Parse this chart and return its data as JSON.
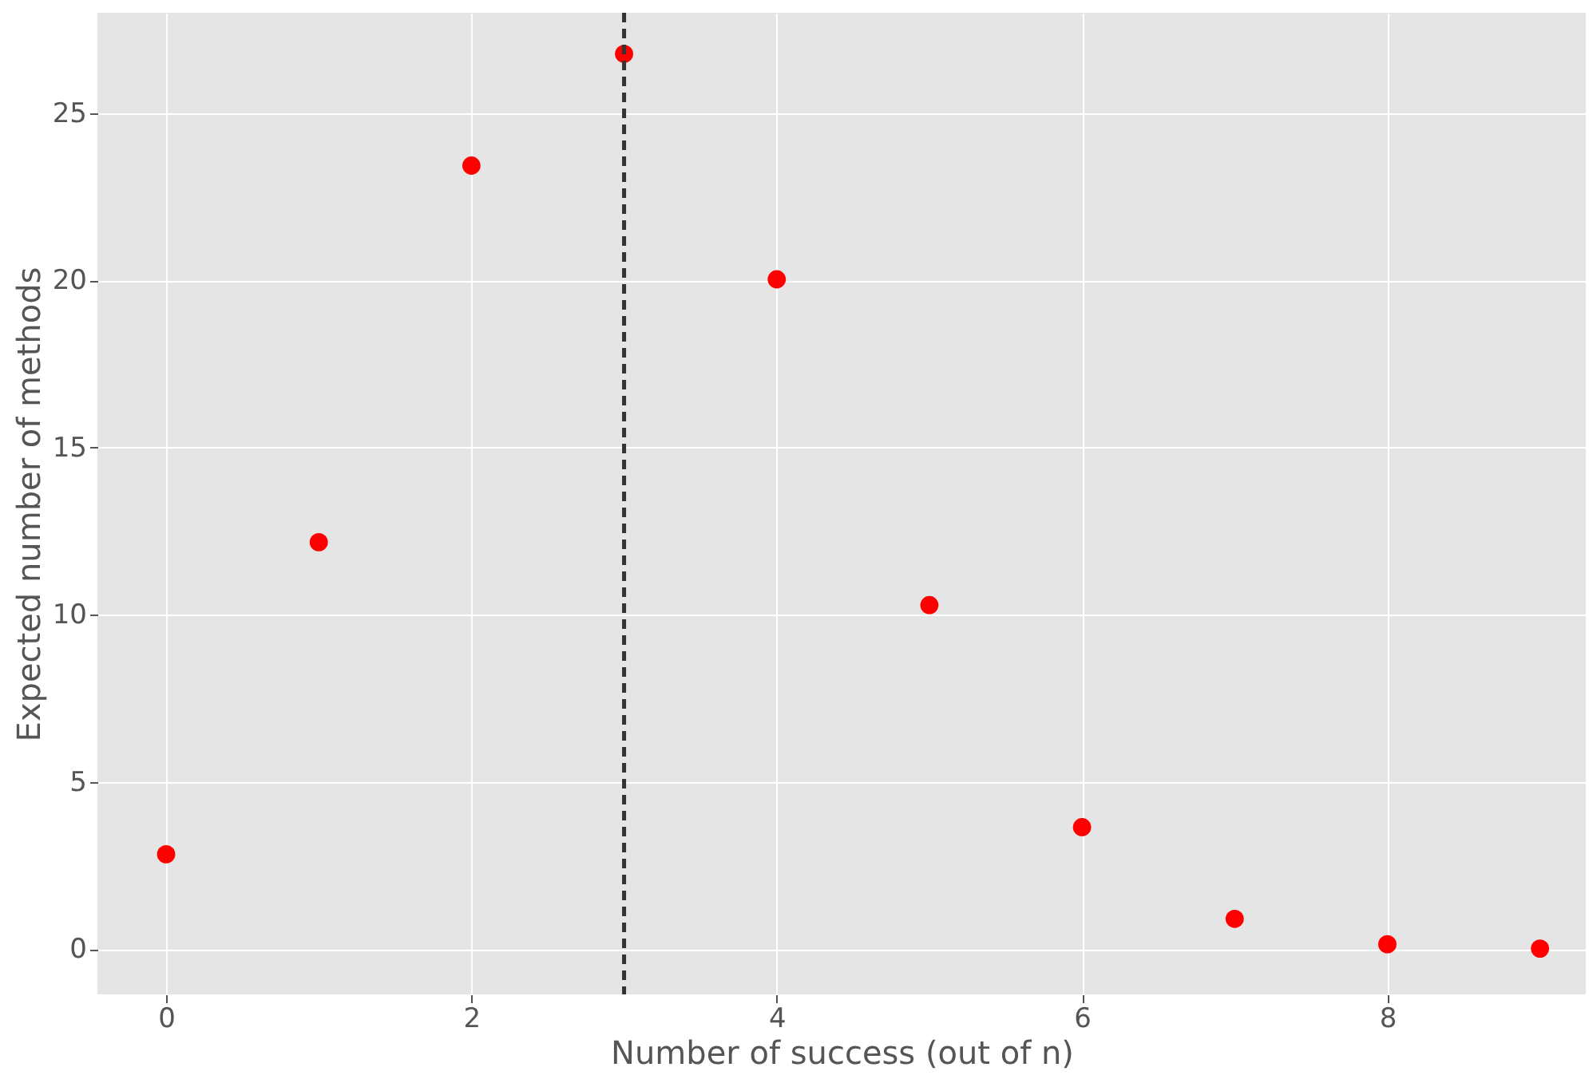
{
  "chart_data": {
    "type": "scatter",
    "xlabel": "Number of success (out of n)",
    "ylabel": "Expected number of methods",
    "x": [
      0,
      1,
      2,
      3,
      4,
      5,
      6,
      7,
      8,
      9
    ],
    "series": [
      {
        "color": "#ff0000",
        "values": [
          2.84,
          12.17,
          23.43,
          26.77,
          20.03,
          10.29,
          3.65,
          0.91,
          0.15,
          0.02
        ]
      }
    ],
    "xlim": [
      -0.45,
      9.3
    ],
    "ylim": [
      -1.35,
      28.0
    ],
    "xticks": [
      0,
      2,
      4,
      6,
      8
    ],
    "yticks": [
      0,
      5,
      10,
      15,
      20,
      25
    ],
    "ref_lines": [
      {
        "axis": "x",
        "value": 3,
        "color": "#333333",
        "line_style": "dashed"
      }
    ],
    "grid": true,
    "marker": "circle",
    "legend": false
  }
}
